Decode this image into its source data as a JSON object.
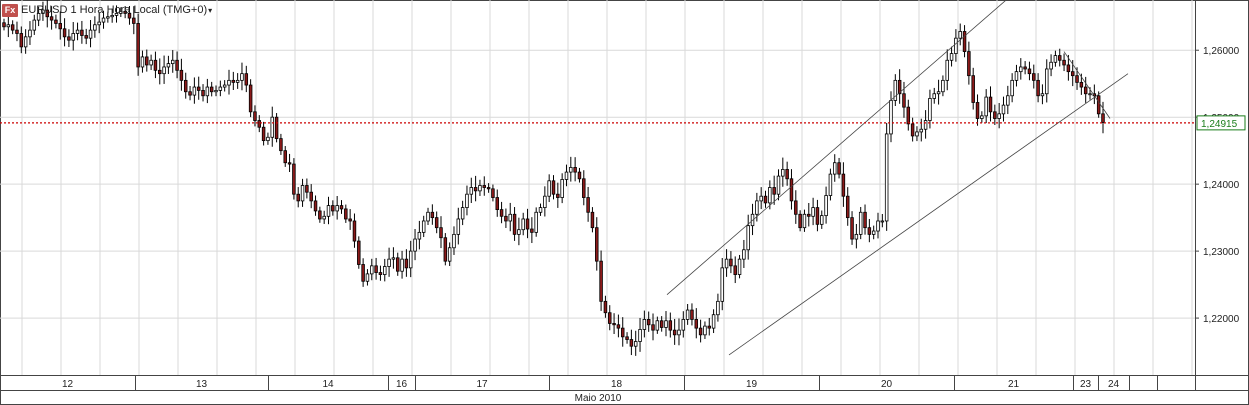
{
  "header": {
    "badge": "Fx",
    "title": "EURUSD 1 Hora Hora Local (TMG+0)",
    "caret": "▾"
  },
  "colors": {
    "background": "#ffffff",
    "grid": "#d9d9d9",
    "up_candle": "#ffffff",
    "down_candle": "#8b1a1a",
    "wick": "#000000",
    "current_price_line": "#cc0000",
    "price_label_border": "#1a7d1a",
    "trendline": "#444444"
  },
  "chart_data": {
    "type": "candlestick",
    "title": "EURUSD 1 Hora Hora Local (TMG+0)",
    "xlabel": "Maio 2010",
    "ylabel": "",
    "ylim": [
      1.2115,
      1.2675
    ],
    "y_ticks": [
      "1,22000",
      "1,23000",
      "1,24000",
      "1,25000",
      "1,26000"
    ],
    "y_tick_values": [
      1.22,
      1.23,
      1.24,
      1.25,
      1.26
    ],
    "current_price": 1.24915,
    "current_price_label": "1,24915",
    "x_day_labels": [
      "12",
      "13",
      "14",
      "16",
      "17",
      "18",
      "19",
      "20",
      "21",
      "23",
      "24"
    ],
    "x_month_label": "Maio 2010",
    "grid": true,
    "trendlines": [
      {
        "name": "channel-upper",
        "from": [
          1.2235,
          0.133
        ],
        "to": [
          1.268,
          0.2
        ]
      },
      {
        "name": "channel-lower",
        "from": [
          1.2145,
          0.225
        ],
        "to": [
          1.2565,
          0.35
        ]
      }
    ],
    "closes": [
      1.2635,
      1.2638,
      1.263,
      1.2625,
      1.2605,
      1.262,
      1.263,
      1.2645,
      1.2655,
      1.266,
      1.265,
      1.2645,
      1.264,
      1.2632,
      1.262,
      1.2615,
      1.2625,
      1.263,
      1.2622,
      1.2618,
      1.263,
      1.2638,
      1.2642,
      1.2648,
      1.265,
      1.2652,
      1.2655,
      1.2658,
      1.2655,
      1.2648,
      1.264,
      1.2575,
      1.259,
      1.2578,
      1.2585,
      1.257,
      1.2565,
      1.2575,
      1.258,
      1.2585,
      1.257,
      1.2555,
      1.2538,
      1.2533,
      1.2545,
      1.254,
      1.2532,
      1.2545,
      1.2538,
      1.254,
      1.2545,
      1.2548,
      1.2555,
      1.2552,
      1.2555,
      1.2565,
      1.2548,
      1.2508,
      1.2495,
      1.2485,
      1.2465,
      1.247,
      1.25,
      1.2468,
      1.245,
      1.2432,
      1.243,
      1.2385,
      1.2375,
      1.2398,
      1.2388,
      1.2375,
      1.236,
      1.2348,
      1.2352,
      1.2368,
      1.236,
      1.2368,
      1.2363,
      1.2348,
      1.2345,
      1.2315,
      1.228,
      1.2255,
      1.2266,
      1.2278,
      1.2268,
      1.2265,
      1.2277,
      1.2288,
      1.229,
      1.227,
      1.2288,
      1.2275,
      1.23,
      1.2318,
      1.2328,
      1.2345,
      1.2358,
      1.235,
      1.2335,
      1.232,
      1.2285,
      1.2305,
      1.2325,
      1.2348,
      1.2365,
      1.2385,
      1.2395,
      1.239,
      1.2398,
      1.2395,
      1.2393,
      1.238,
      1.2362,
      1.2352,
      1.2345,
      1.2355,
      1.2325,
      1.2332,
      1.2348,
      1.2333,
      1.2328,
      1.2358,
      1.2365,
      1.2382,
      1.2405,
      1.2385,
      1.238,
      1.2407,
      1.2418,
      1.2425,
      1.2418,
      1.2408,
      1.238,
      1.2358,
      1.2335,
      1.2285,
      1.2225,
      1.2208,
      1.2192,
      1.219,
      1.2185,
      1.2172,
      1.2168,
      1.2158,
      1.2165,
      1.2183,
      1.2198,
      1.219,
      1.2182,
      1.2196,
      1.2186,
      1.2196,
      1.2182,
      1.2175,
      1.2182,
      1.2198,
      1.2212,
      1.2198,
      1.2185,
      1.2175,
      1.2188,
      1.2185,
      1.2205,
      1.2225,
      1.2275,
      1.2288,
      1.2278,
      1.2265,
      1.2288,
      1.2302,
      1.2338,
      1.2355,
      1.2375,
      1.2382,
      1.2372,
      1.2395,
      1.2385,
      1.2412,
      1.2422,
      1.2408,
      1.2375,
      1.2355,
      1.2335,
      1.2355,
      1.2352,
      1.2365,
      1.234,
      1.2353,
      1.2383,
      1.2415,
      1.2432,
      1.2415,
      1.2382,
      1.235,
      1.2318,
      1.2325,
      1.2358,
      1.2335,
      1.2325,
      1.233,
      1.2345,
      1.2345,
      1.2475,
      1.2525,
      1.2555,
      1.2535,
      1.2515,
      1.249,
      1.2472,
      1.2478,
      1.2482,
      1.2495,
      1.2528,
      1.2535,
      1.2538,
      1.2555,
      1.2585,
      1.2595,
      1.2618,
      1.2628,
      1.2598,
      1.2562,
      1.2522,
      1.2498,
      1.2502,
      1.253,
      1.2508,
      1.2498,
      1.2505,
      1.2518,
      1.2532,
      1.2555,
      1.2568,
      1.2575,
      1.2572,
      1.2565,
      1.2555,
      1.2532,
      1.2535,
      1.2572,
      1.2582,
      1.2592,
      1.2585,
      1.2578,
      1.2568,
      1.2562,
      1.2552,
      1.2545,
      1.2535,
      1.2535,
      1.2532,
      1.2505,
      1.2492
    ],
    "summary_notes": "Hourly candles from 12 to 24 May 2010; last close near 1.2492"
  }
}
